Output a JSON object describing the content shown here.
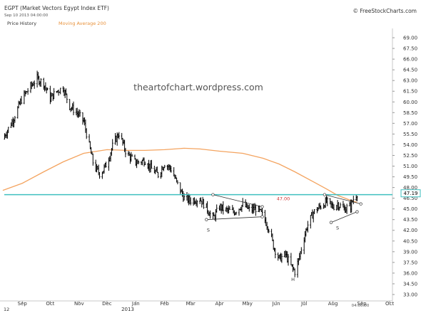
{
  "header": {
    "title": "EGPT (Market Vectors Egypt Index ETF)",
    "date": "Sep 10 2013 04:00:00",
    "credit": "© FreeStockCharts.com",
    "legend_price": "Price History",
    "legend_ma": "Moving Average 200"
  },
  "watermark": "theartofchart.wordpress.com",
  "time_label": "04:00:00",
  "corner_label": "12",
  "year_label": "2013",
  "colors": {
    "bars": "#000000",
    "moving_average": "#f4a460",
    "resistance": "#3fbfbf",
    "resistance_label": "#cc3333",
    "ma_legend": "#e8913a",
    "last_price_box": "#3fbfbf"
  },
  "chart_data": {
    "type": "bar",
    "subtype": "ohlc-price-history",
    "title": "EGPT (Market Vectors Egypt Index ETF)",
    "x_labels": [
      "Sep",
      "Oct",
      "Nov",
      "Dec",
      "Jan",
      "Feb",
      "Mar",
      "Apr",
      "May",
      "Jun",
      "Jul",
      "Aug",
      "Sep",
      "Oct"
    ],
    "y_ticks": [
      33.0,
      34.5,
      36.0,
      37.5,
      39.0,
      40.5,
      42.0,
      43.5,
      45.0,
      46.5,
      48.0,
      49.5,
      51.0,
      52.5,
      54.0,
      55.5,
      57.0,
      58.5,
      60.0,
      61.5,
      63.0,
      64.5,
      66.0,
      67.5,
      69.0
    ],
    "ylim": [
      32.1,
      70.3
    ],
    "axis_side": "right",
    "grid": false,
    "last_price": 47.19,
    "series": [
      {
        "name": "Price History",
        "kind": "ohlc",
        "anchors": [
          [
            "2012-08-25",
            54.8
          ],
          [
            "2012-09-05",
            57.5
          ],
          [
            "2012-09-15",
            60.6
          ],
          [
            "2012-09-25",
            62.3
          ],
          [
            "2012-10-01",
            63.3
          ],
          [
            "2012-10-08",
            62.6
          ],
          [
            "2012-10-15",
            60.5
          ],
          [
            "2012-10-22",
            61.5
          ],
          [
            "2012-10-29",
            62.0
          ],
          [
            "2012-11-05",
            59.4
          ],
          [
            "2012-11-12",
            58.6
          ],
          [
            "2012-11-20",
            57.3
          ],
          [
            "2012-12-01",
            51.0
          ],
          [
            "2012-12-08",
            49.8
          ],
          [
            "2012-12-15",
            51.4
          ],
          [
            "2012-12-22",
            54.2
          ],
          [
            "2012-12-28",
            55.6
          ],
          [
            "2013-01-05",
            52.8
          ],
          [
            "2013-01-15",
            51.5
          ],
          [
            "2013-01-25",
            51.8
          ],
          [
            "2013-02-01",
            50.6
          ],
          [
            "2013-02-08",
            49.8
          ],
          [
            "2013-02-15",
            51.4
          ],
          [
            "2013-02-22",
            50.6
          ],
          [
            "2013-03-01",
            48.4
          ],
          [
            "2013-03-08",
            46.5
          ],
          [
            "2013-03-15",
            46.2
          ],
          [
            "2013-03-25",
            46.4
          ],
          [
            "2013-04-01",
            45.2
          ],
          [
            "2013-04-08",
            43.6
          ],
          [
            "2013-04-15",
            45.3
          ],
          [
            "2013-04-22",
            44.8
          ],
          [
            "2013-05-01",
            44.6
          ],
          [
            "2013-05-10",
            45.6
          ],
          [
            "2013-05-18",
            44.8
          ],
          [
            "2013-05-25",
            45.1
          ],
          [
            "2013-06-01",
            44.0
          ],
          [
            "2013-06-08",
            42.0
          ],
          [
            "2013-06-12",
            39.8
          ],
          [
            "2013-06-18",
            38.0
          ],
          [
            "2013-06-25",
            38.6
          ],
          [
            "2013-07-01",
            37.0
          ],
          [
            "2013-07-05",
            36.2
          ],
          [
            "2013-07-09",
            37.8
          ],
          [
            "2013-07-13",
            40.0
          ],
          [
            "2013-07-18",
            42.5
          ],
          [
            "2013-07-25",
            44.5
          ],
          [
            "2013-08-01",
            45.3
          ],
          [
            "2013-08-08",
            46.0
          ],
          [
            "2013-08-15",
            45.3
          ],
          [
            "2013-08-20",
            45.7
          ],
          [
            "2013-08-27",
            45.0
          ],
          [
            "2013-09-03",
            45.4
          ],
          [
            "2013-09-06",
            46.4
          ],
          [
            "2013-09-10",
            47.2
          ]
        ]
      },
      {
        "name": "Moving Average 200",
        "kind": "line",
        "points": [
          [
            "2012-08-25",
            47.6
          ],
          [
            "2012-09-15",
            48.6
          ],
          [
            "2012-10-08",
            50.2
          ],
          [
            "2012-10-29",
            51.6
          ],
          [
            "2012-11-20",
            52.8
          ],
          [
            "2012-12-15",
            53.3
          ],
          [
            "2013-01-05",
            53.2
          ],
          [
            "2013-01-25",
            53.2
          ],
          [
            "2013-02-15",
            53.3
          ],
          [
            "2013-03-08",
            53.5
          ],
          [
            "2013-03-25",
            53.4
          ],
          [
            "2013-04-15",
            53.1
          ],
          [
            "2013-05-10",
            52.8
          ],
          [
            "2013-06-01",
            52.1
          ],
          [
            "2013-06-18",
            51.3
          ],
          [
            "2013-07-05",
            50.2
          ],
          [
            "2013-07-25",
            48.8
          ],
          [
            "2013-08-08",
            47.8
          ],
          [
            "2013-08-20",
            46.9
          ],
          [
            "2013-09-03",
            46.2
          ],
          [
            "2013-09-10",
            45.9
          ]
        ]
      }
    ],
    "annotations": {
      "resistance": {
        "value": 47.0,
        "label": "47.00"
      },
      "pattern_labels": [
        {
          "text": "S",
          "date": "2013-04-03",
          "value": 42.1
        },
        {
          "text": "H",
          "date": "2013-07-03",
          "value": 35.2
        },
        {
          "text": "S",
          "date": "2013-08-20",
          "value": 42.4
        }
      ],
      "trendlines": [
        {
          "from": [
            "2013-04-08",
            47.0
          ],
          "to": [
            "2013-05-31",
            45.3
          ]
        },
        {
          "from": [
            "2013-04-01",
            43.5
          ],
          "to": [
            "2013-05-31",
            43.9
          ]
        },
        {
          "from": [
            "2013-08-06",
            47.0
          ],
          "to": [
            "2013-09-14",
            45.7
          ]
        },
        {
          "from": [
            "2013-08-13",
            43.1
          ],
          "to": [
            "2013-09-10",
            44.6
          ]
        }
      ]
    }
  }
}
